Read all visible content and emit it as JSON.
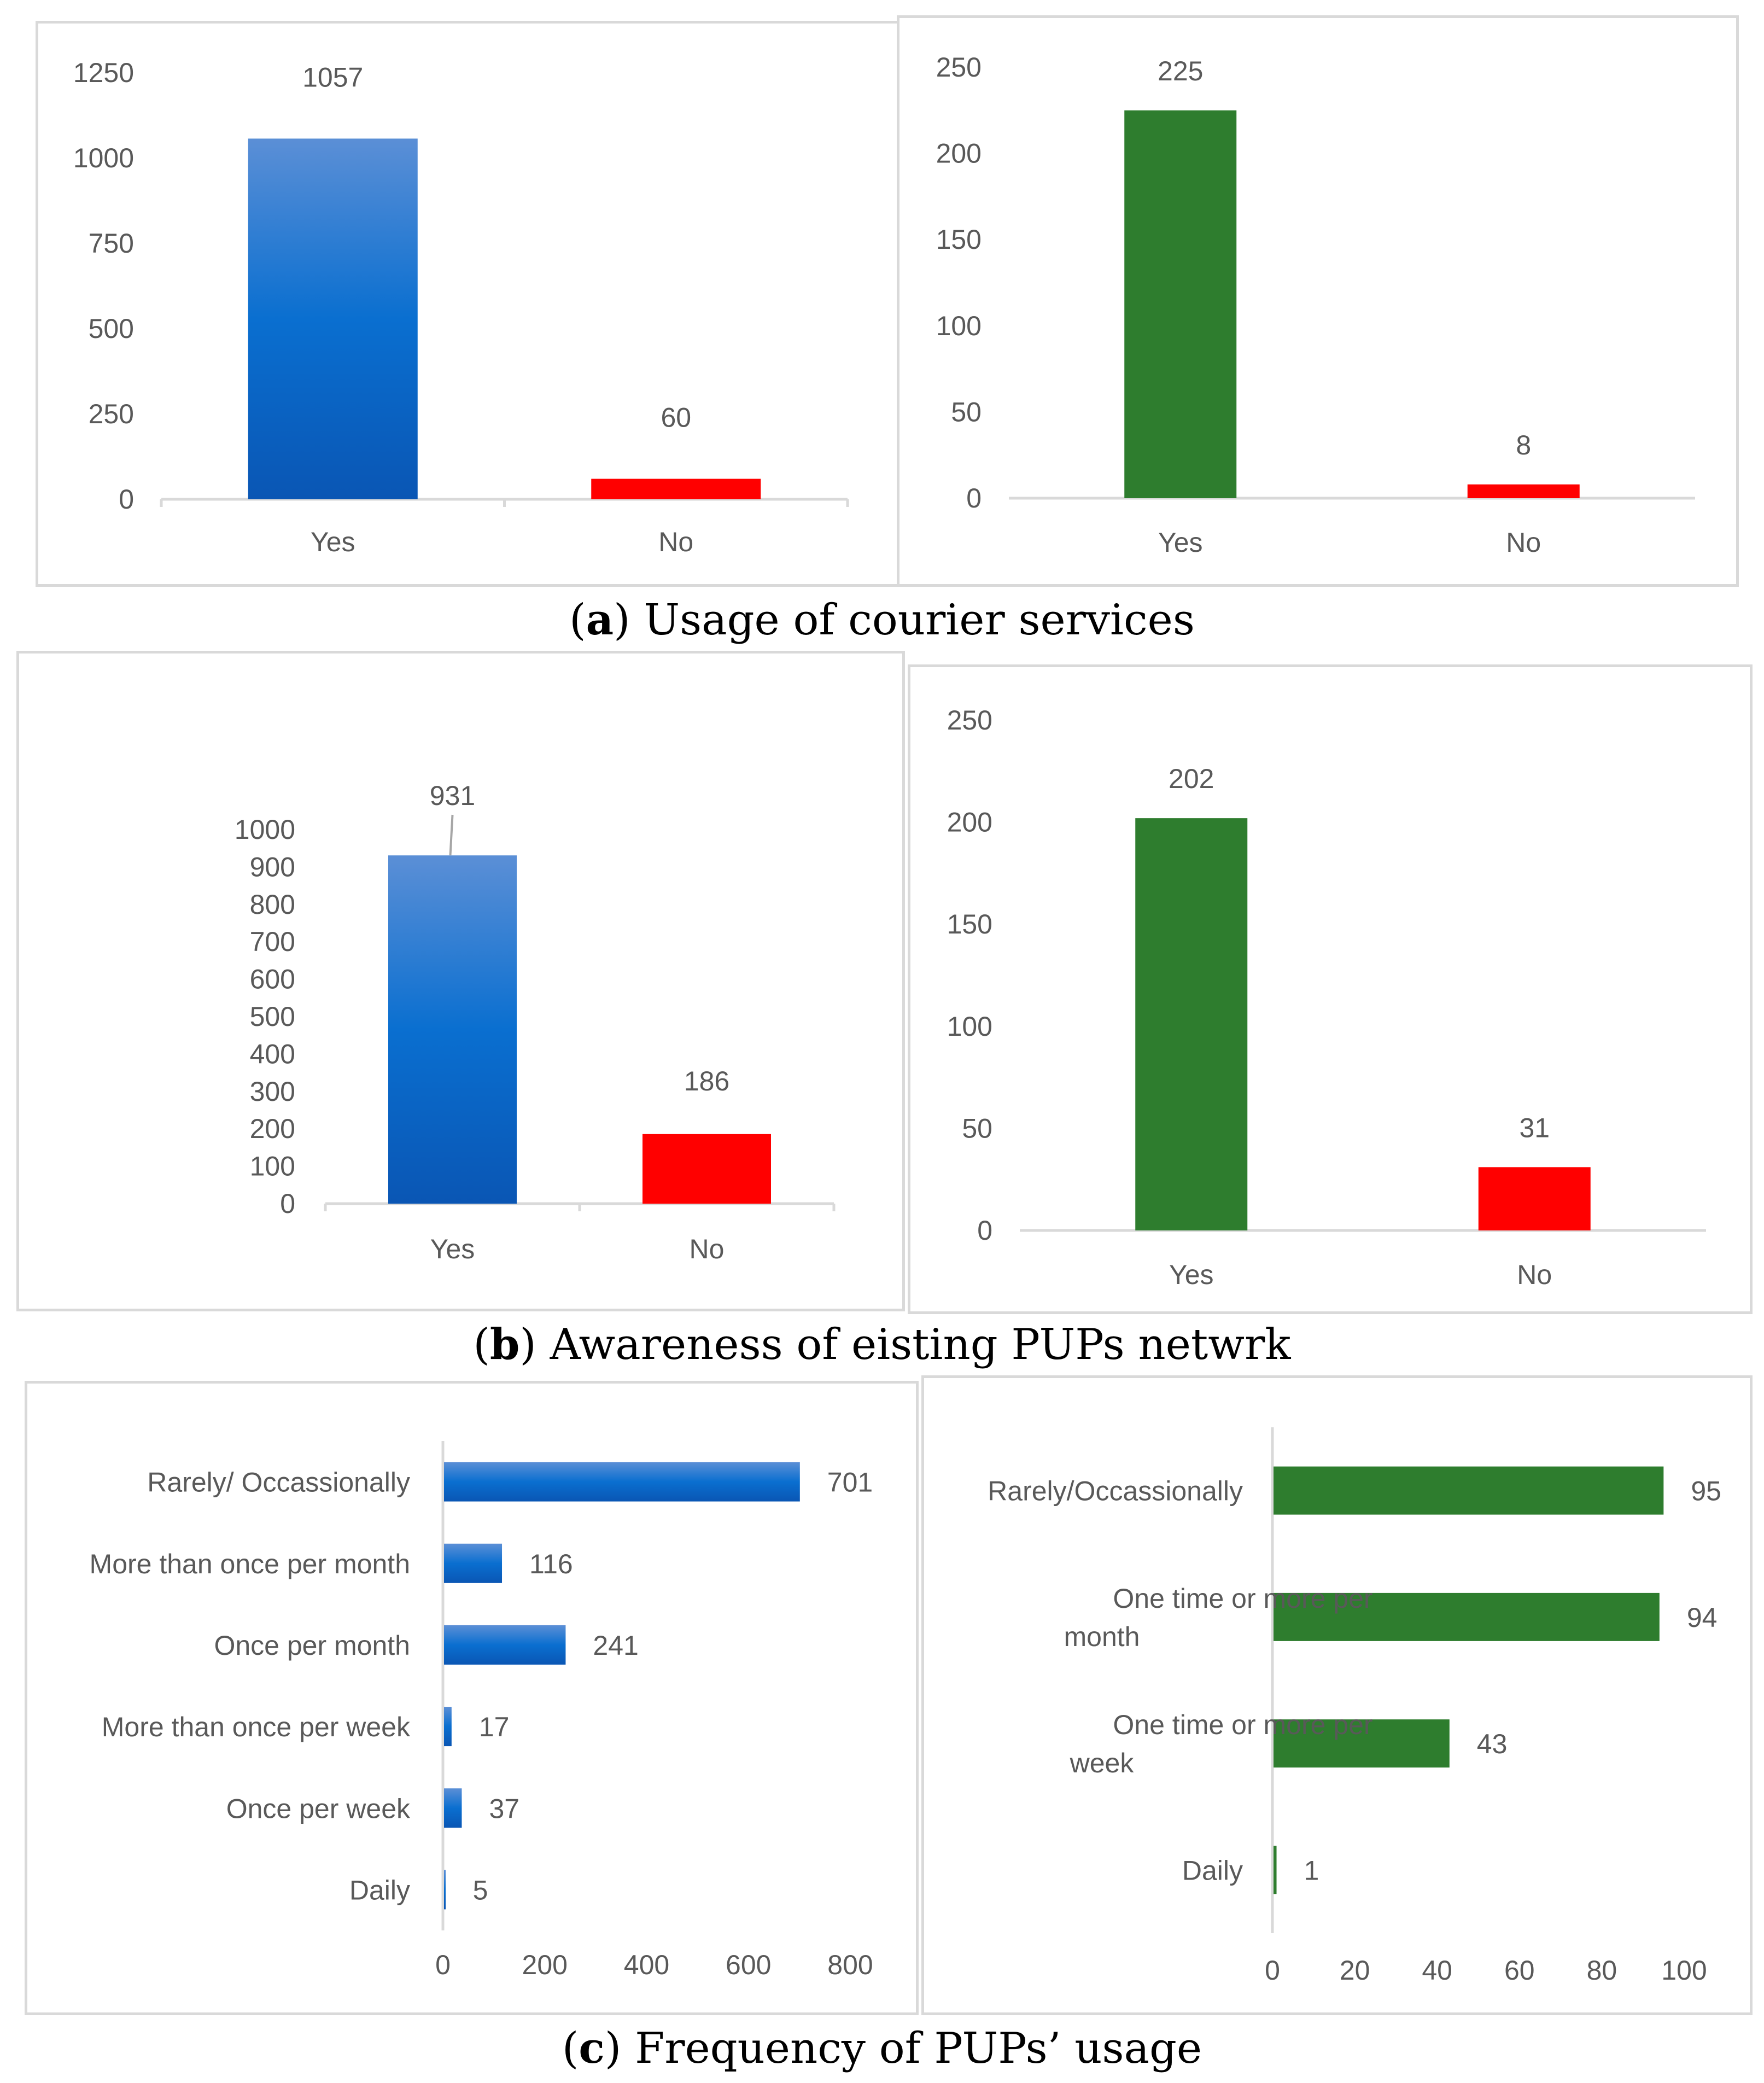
{
  "figure": {
    "captions": [
      {
        "letter": "a",
        "text": "Usage of courier services"
      },
      {
        "letter": "b",
        "text": "Awareness of eisting PUPs netwrk"
      },
      {
        "letter": "c",
        "text": "Frequency of PUPs’ usage"
      }
    ]
  },
  "colors": {
    "blue_top": "#5b8fd6",
    "blue_mid": "#0a6fd0",
    "blue_bottom": "#0a56b4",
    "green": "#2e7d2e",
    "red": "#ff0000",
    "axis_text": "#595959",
    "axis_line": "#d9d9d9"
  },
  "chart_data": [
    {
      "id": "a-left",
      "type": "bar",
      "orientation": "vertical",
      "title": "",
      "xlabel": "",
      "ylabel": "",
      "categories": [
        "Yes",
        "No"
      ],
      "values": [
        1057,
        60
      ],
      "colors": [
        "blue",
        "red"
      ],
      "ylim": [
        0,
        1250
      ],
      "yticks": [
        0,
        250,
        500,
        750,
        1000,
        1250
      ],
      "grid": false,
      "legend": "none"
    },
    {
      "id": "a-right",
      "type": "bar",
      "orientation": "vertical",
      "title": "",
      "xlabel": "",
      "ylabel": "",
      "categories": [
        "Yes",
        "No"
      ],
      "values": [
        225,
        8
      ],
      "colors": [
        "green",
        "red"
      ],
      "ylim": [
        0,
        250
      ],
      "yticks": [
        0,
        50,
        100,
        150,
        200,
        250
      ],
      "grid": false,
      "legend": "none"
    },
    {
      "id": "b-left",
      "type": "bar",
      "orientation": "vertical",
      "title": "",
      "xlabel": "",
      "ylabel": "",
      "categories": [
        "Yes",
        "No"
      ],
      "values": [
        931,
        186
      ],
      "colors": [
        "blue",
        "red"
      ],
      "ylim": [
        0,
        1000
      ],
      "yticks": [
        0,
        100,
        200,
        300,
        400,
        500,
        600,
        700,
        800,
        900,
        1000
      ],
      "grid": false,
      "legend": "none"
    },
    {
      "id": "b-right",
      "type": "bar",
      "orientation": "vertical",
      "title": "",
      "xlabel": "",
      "ylabel": "",
      "categories": [
        "Yes",
        "No"
      ],
      "values": [
        202,
        31
      ],
      "colors": [
        "green",
        "red"
      ],
      "ylim": [
        0,
        250
      ],
      "yticks": [
        0,
        50,
        100,
        150,
        200,
        250
      ],
      "grid": false,
      "legend": "none"
    },
    {
      "id": "c-left",
      "type": "bar",
      "orientation": "horizontal",
      "title": "",
      "xlabel": "",
      "ylabel": "",
      "categories": [
        "Rarely/ Occassionally",
        "More than once per month",
        "Once per month",
        "More than once per week",
        "Once per week",
        "Daily"
      ],
      "values": [
        701,
        116,
        241,
        17,
        37,
        5
      ],
      "colors": [
        "blue"
      ],
      "xlim": [
        0,
        800
      ],
      "xticks": [
        0,
        200,
        400,
        600,
        800
      ],
      "grid": false,
      "legend": "none"
    },
    {
      "id": "c-right",
      "type": "bar",
      "orientation": "horizontal",
      "title": "",
      "xlabel": "",
      "ylabel": "",
      "categories": [
        [
          "Rarely/Occassionally"
        ],
        [
          "One time or more per",
          "month"
        ],
        [
          "One time or more per",
          "week"
        ],
        [
          "Daily"
        ]
      ],
      "values": [
        95,
        94,
        43,
        1
      ],
      "colors": [
        "green"
      ],
      "xlim": [
        0,
        100
      ],
      "xticks": [
        0,
        20,
        40,
        60,
        80,
        100
      ],
      "grid": false,
      "legend": "none"
    }
  ]
}
